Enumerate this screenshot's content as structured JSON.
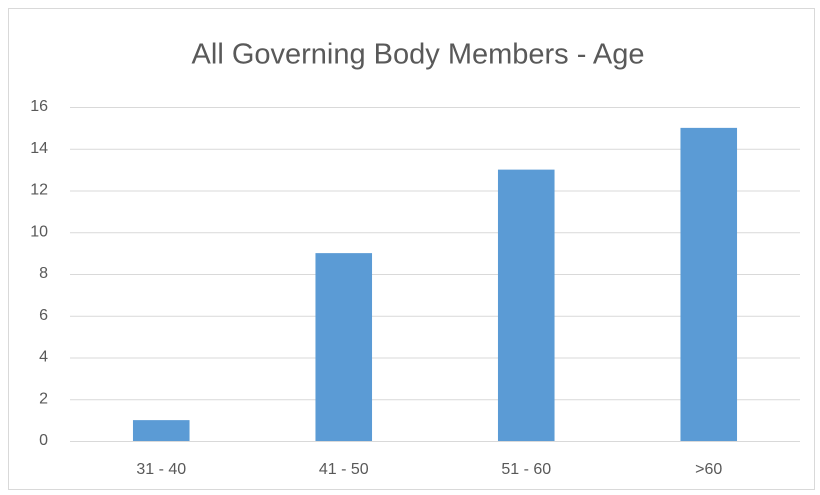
{
  "chart_data": {
    "type": "bar",
    "title": "All Governing Body Members - Age",
    "categories": [
      "31 - 40",
      "41 - 50",
      "51 - 60",
      ">60"
    ],
    "values": [
      1,
      9,
      13,
      15
    ],
    "color": "#5b9bd5",
    "ylim": [
      0,
      16
    ],
    "yticks": [
      0,
      2,
      4,
      6,
      8,
      10,
      12,
      14,
      16
    ],
    "grid": true
  }
}
